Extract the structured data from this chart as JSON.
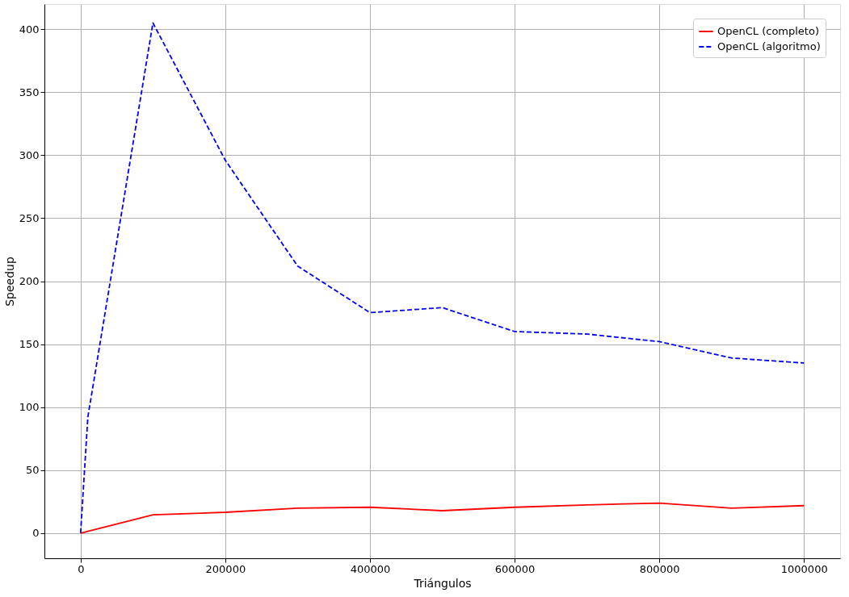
{
  "chart_data": {
    "type": "line",
    "xlabel": "Triángulos",
    "ylabel": "Speedup",
    "xlim": [
      -50000,
      1050000
    ],
    "xticks": [
      0,
      200000,
      400000,
      600000,
      800000,
      1000000
    ],
    "ylim": [
      -20,
      420
    ],
    "yticks": [
      0,
      50,
      100,
      150,
      200,
      250,
      300,
      350,
      400
    ],
    "grid": true,
    "legend": "top right",
    "marker": "none",
    "series": [
      {
        "name": "OpenCL (completo)",
        "color": "#ff0000",
        "line_style": "solid",
        "x": [
          0,
          100000,
          200000,
          300000,
          400000,
          500000,
          600000,
          700000,
          800000,
          900000,
          1000000
        ],
        "values": [
          0,
          14.5,
          16.5,
          19.8,
          20.5,
          17.8,
          20.5,
          22.4,
          23.8,
          19.8,
          21.8
        ]
      },
      {
        "name": "OpenCL (algoritmo)",
        "color": "#0000ff",
        "line_style": "dashed",
        "x": [
          0,
          10000,
          100000,
          200000,
          300000,
          400000,
          500000,
          600000,
          700000,
          800000,
          900000,
          1000000
        ],
        "values": [
          0,
          92,
          405,
          296,
          212,
          175,
          179,
          160,
          158,
          152,
          139,
          135
        ]
      }
    ]
  }
}
